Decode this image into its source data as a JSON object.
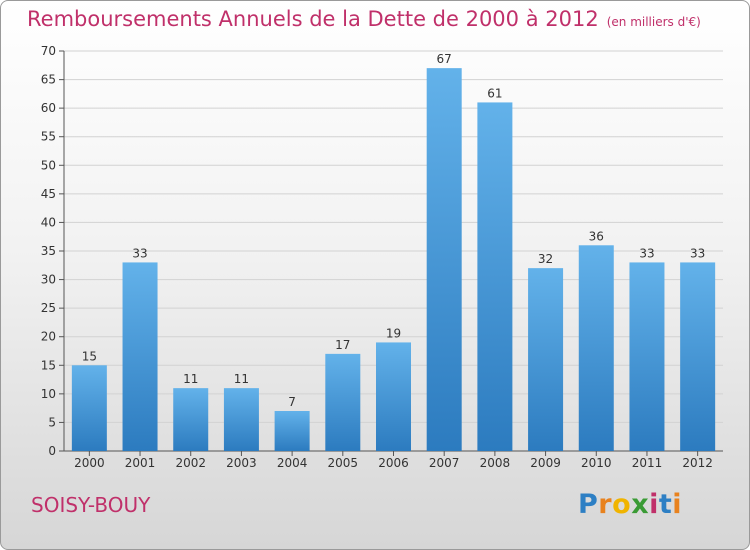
{
  "title": "Remboursements Annuels de la Dette de 2000 à 2012",
  "unit": "(en milliers d'€)",
  "commune": "SOISY-BOUY",
  "logo": {
    "letters": [
      "P",
      "r",
      "o",
      "x",
      "i",
      "t",
      "i"
    ],
    "colors": [
      "#2d7fc4",
      "#e8821e",
      "#f0b400",
      "#3a9b35",
      "#c0306a",
      "#2d7fc4",
      "#e8821e"
    ]
  },
  "colors": {
    "bar_top": "#63b2ea",
    "bar_bottom": "#2c7bbf",
    "title": "#c0306a"
  },
  "chart_data": {
    "type": "bar",
    "categories": [
      "2000",
      "2001",
      "2002",
      "2003",
      "2004",
      "2005",
      "2006",
      "2007",
      "2008",
      "2009",
      "2010",
      "2011",
      "2012"
    ],
    "values": [
      15,
      33,
      11,
      11,
      7,
      17,
      19,
      67,
      61,
      32,
      36,
      33,
      33
    ],
    "ylim": [
      0,
      70
    ],
    "yticks": [
      0,
      5,
      10,
      15,
      20,
      25,
      30,
      35,
      40,
      45,
      50,
      55,
      60,
      65,
      70
    ],
    "grid": true,
    "data_labels": true
  }
}
